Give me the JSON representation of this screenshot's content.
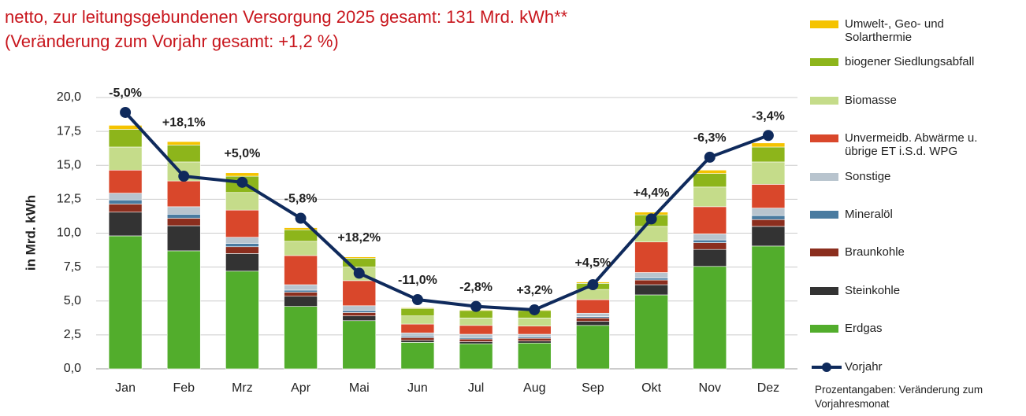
{
  "chart_data": {
    "type": "bar",
    "stacked": true,
    "title": "netto, zur leitungsgebundenen Versorgung 2025 gesamt: 131 Mrd. kWh**",
    "subtitle": "(Veränderung zum Vorjahr gesamt: +1,2 %)",
    "y_label": "in Mrd. kWh",
    "note": "Prozentangaben: Veränderung zum Vorjahresmonat",
    "categories": [
      "Jan",
      "Feb",
      "Mrz",
      "Apr",
      "Mai",
      "Jun",
      "Jul",
      "Aug",
      "Sep",
      "Okt",
      "Nov",
      "Dez"
    ],
    "ylim": [
      0,
      20
    ],
    "yticks": [
      {
        "value": 0,
        "label": "0,0"
      },
      {
        "value": 2.5,
        "label": "2,5"
      },
      {
        "value": 5,
        "label": "5,0"
      },
      {
        "value": 7.5,
        "label": "7,5"
      },
      {
        "value": 10,
        "label": "10,0"
      },
      {
        "value": 12.5,
        "label": "12,5"
      },
      {
        "value": 15,
        "label": "15,0"
      },
      {
        "value": 17.5,
        "label": "17,5"
      },
      {
        "value": 20,
        "label": "20,0"
      }
    ],
    "grid": true,
    "series": [
      {
        "name": "Erdgas",
        "color": "#52ad2c",
        "values": [
          9.8,
          8.7,
          7.2,
          4.6,
          3.55,
          1.95,
          1.85,
          1.9,
          3.2,
          5.45,
          7.55,
          9.05
        ]
      },
      {
        "name": "Steinkohle",
        "color": "#333333",
        "values": [
          1.75,
          1.85,
          1.3,
          0.75,
          0.35,
          0.15,
          0.15,
          0.15,
          0.3,
          0.75,
          1.25,
          1.45
        ]
      },
      {
        "name": "Braunkohle",
        "color": "#8b2e1e",
        "values": [
          0.6,
          0.55,
          0.5,
          0.3,
          0.25,
          0.2,
          0.2,
          0.2,
          0.25,
          0.35,
          0.5,
          0.5
        ]
      },
      {
        "name": "Mineralöl",
        "color": "#4a7ba0",
        "values": [
          0.3,
          0.3,
          0.25,
          0.15,
          0.15,
          0.1,
          0.1,
          0.1,
          0.1,
          0.15,
          0.2,
          0.3
        ]
      },
      {
        "name": "Sonstige",
        "color": "#b8c4ce",
        "values": [
          0.5,
          0.55,
          0.45,
          0.4,
          0.35,
          0.25,
          0.25,
          0.2,
          0.25,
          0.4,
          0.45,
          0.55
        ]
      },
      {
        "name": "Unvermeidb. Abwärme u. übrige ET i.S.d. WPG",
        "color": "#d9472b",
        "values": [
          1.7,
          1.9,
          2.0,
          2.15,
          1.85,
          0.65,
          0.65,
          0.6,
          1.0,
          2.25,
          2.0,
          1.75
        ]
      },
      {
        "name": "Biomasse",
        "color": "#c5dc8a",
        "values": [
          1.7,
          1.4,
          1.3,
          1.05,
          1.0,
          0.6,
          0.55,
          0.6,
          0.75,
          1.15,
          1.45,
          1.65
        ]
      },
      {
        "name": "biogener Siedlungsabfall",
        "color": "#8db51b",
        "values": [
          1.3,
          1.25,
          1.2,
          0.85,
          0.65,
          0.55,
          0.55,
          0.55,
          0.45,
          0.85,
          1.0,
          1.1
        ]
      },
      {
        "name": "Umwelt-, Geo- und Solarthermie",
        "color": "#f5c300",
        "values": [
          0.3,
          0.25,
          0.25,
          0.15,
          0.1,
          0.05,
          0.05,
          0.05,
          0.1,
          0.2,
          0.25,
          0.3
        ]
      },
      {
        "name": "Vorjahr",
        "type": "line",
        "color": "#0f2a5c",
        "values": [
          18.9,
          14.2,
          13.75,
          11.1,
          7.05,
          5.1,
          4.6,
          4.35,
          6.2,
          11.05,
          15.6,
          17.2
        ]
      }
    ],
    "annotations": [
      "-5,0%",
      "+18,1%",
      "+5,0%",
      "-5,8%",
      "+18,2%",
      "-11,0%",
      "-2,8%",
      "+3,2%",
      "+4,5%",
      "+4,4%",
      "-6,3%",
      "-3,4%"
    ]
  }
}
